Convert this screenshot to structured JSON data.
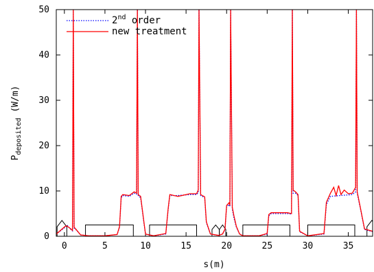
{
  "chart_data": {
    "type": "line",
    "xlabel": "s(m)",
    "ylabel_main": "P",
    "ylabel_sub": "deposited",
    "ylabel_unit": "(W/m)",
    "xlim": [
      -1,
      38
    ],
    "ylim": [
      0,
      50
    ],
    "x_ticks": [
      0,
      5,
      10,
      15,
      20,
      25,
      30,
      35
    ],
    "y_ticks": [
      0,
      10,
      20,
      30,
      40,
      50
    ],
    "legend_position": "top-left",
    "series": [
      {
        "name_main": "2",
        "name_sup": "nd",
        "name_rest": " order",
        "color": "#0000ff",
        "dash": "dotted",
        "x": [
          -1,
          0.1,
          0.3,
          0.8,
          1.0,
          1.1,
          1.2,
          1.4,
          2.0,
          3.0,
          5.0,
          6.5,
          6.8,
          7.0,
          7.2,
          8.0,
          8.6,
          8.9,
          9.0,
          9.1,
          9.4,
          9.8,
          10.0,
          11.0,
          12.5,
          12.8,
          13.0,
          14.0,
          15.5,
          16.3,
          16.5,
          16.6,
          16.8,
          17.3,
          17.5,
          18.0,
          19.0,
          19.5,
          19.8,
          20.0,
          20.3,
          20.4,
          20.5,
          20.7,
          20.9,
          21.2,
          21.6,
          22.0,
          24.0,
          25.0,
          25.2,
          25.5,
          27.5,
          28.0,
          28.1,
          28.2,
          28.5,
          28.8,
          29.0,
          30.0,
          32.0,
          32.3,
          32.8,
          34.0,
          35.5,
          35.9,
          36.0,
          36.1,
          36.5,
          37.0,
          38.0
        ],
        "y": [
          0.5,
          2.0,
          2.5,
          1.5,
          1.2,
          50,
          1.8,
          1.5,
          0.3,
          0.1,
          0.1,
          0.4,
          2.0,
          8.5,
          9.0,
          8.8,
          9.5,
          9.3,
          50,
          9.0,
          8.5,
          3.0,
          0.5,
          0.1,
          0.5,
          6.0,
          9.0,
          9.0,
          9.2,
          9.2,
          9.6,
          50,
          9.0,
          8.5,
          3.0,
          0.5,
          0.2,
          0.5,
          1.5,
          6.5,
          7.0,
          6.5,
          50,
          6.0,
          4.0,
          2.0,
          0.5,
          0.1,
          0.1,
          0.5,
          4.5,
          5.0,
          5.0,
          4.9,
          50,
          9.5,
          9.5,
          9.0,
          1.0,
          0.1,
          0.5,
          7.0,
          8.8,
          9.0,
          9.2,
          9.8,
          50,
          9.5,
          6.0,
          1.5,
          1.0
        ]
      },
      {
        "name": "new treatment",
        "color": "#ff0000",
        "dash": "solid",
        "x": [
          -1,
          0.1,
          0.3,
          0.8,
          1.0,
          1.1,
          1.2,
          1.4,
          2.0,
          3.0,
          5.0,
          6.5,
          6.8,
          7.0,
          7.2,
          8.0,
          8.6,
          8.9,
          9.0,
          9.1,
          9.4,
          9.8,
          10.0,
          11.0,
          12.5,
          12.8,
          13.0,
          14.0,
          15.5,
          16.3,
          16.5,
          16.6,
          16.8,
          17.3,
          17.5,
          18.0,
          19.0,
          19.5,
          19.8,
          20.0,
          20.3,
          20.4,
          20.5,
          20.7,
          20.9,
          21.2,
          21.6,
          22.0,
          24.0,
          25.0,
          25.2,
          25.5,
          27.5,
          28.0,
          28.1,
          28.2,
          28.5,
          28.8,
          29.0,
          30.0,
          32.0,
          32.3,
          32.8,
          33.2,
          33.5,
          33.8,
          34.1,
          34.5,
          35.0,
          35.5,
          35.9,
          36.0,
          36.1,
          36.5,
          37.0,
          38.0
        ],
        "y": [
          0.5,
          2.2,
          2.3,
          1.6,
          1.3,
          50,
          2.0,
          1.6,
          0.3,
          0.1,
          0.1,
          0.4,
          2.2,
          8.8,
          9.2,
          9.0,
          9.8,
          9.5,
          50,
          9.2,
          8.8,
          3.2,
          0.5,
          0.1,
          0.6,
          6.2,
          9.2,
          8.8,
          9.4,
          9.4,
          10.2,
          50,
          9.2,
          8.7,
          3.2,
          0.5,
          0.2,
          0.5,
          1.6,
          6.8,
          7.4,
          6.8,
          50,
          6.4,
          4.5,
          2.2,
          0.5,
          0.1,
          0.1,
          0.6,
          4.8,
          5.2,
          5.2,
          5.0,
          50,
          10.2,
          9.8,
          9.2,
          1.1,
          0.1,
          0.6,
          7.5,
          9.5,
          10.8,
          9.0,
          11.2,
          9.2,
          10.2,
          9.4,
          9.5,
          10.8,
          50,
          9.8,
          6.2,
          1.6,
          1.1
        ]
      }
    ],
    "elements": [
      {
        "type": "box",
        "x0": 2.6,
        "x1": 8.5,
        "h": 2.5
      },
      {
        "type": "box",
        "x0": 10.5,
        "x1": 16.3,
        "h": 2.5
      },
      {
        "type": "box",
        "x0": 22.0,
        "x1": 27.8,
        "h": 2.5
      },
      {
        "type": "box",
        "x0": 30.0,
        "x1": 35.8,
        "h": 2.5
      },
      {
        "type": "chevron",
        "x0": -0.9,
        "x1": 0.3,
        "h": 3.5
      },
      {
        "type": "chevron",
        "x0": 18.2,
        "x1": 19.1,
        "h": 2.5
      },
      {
        "type": "chevron",
        "x0": 19.1,
        "x1": 19.9,
        "h": 2.5
      },
      {
        "type": "chevron",
        "x0": 37.3,
        "x1": 38.5,
        "h": 3.5
      }
    ]
  }
}
